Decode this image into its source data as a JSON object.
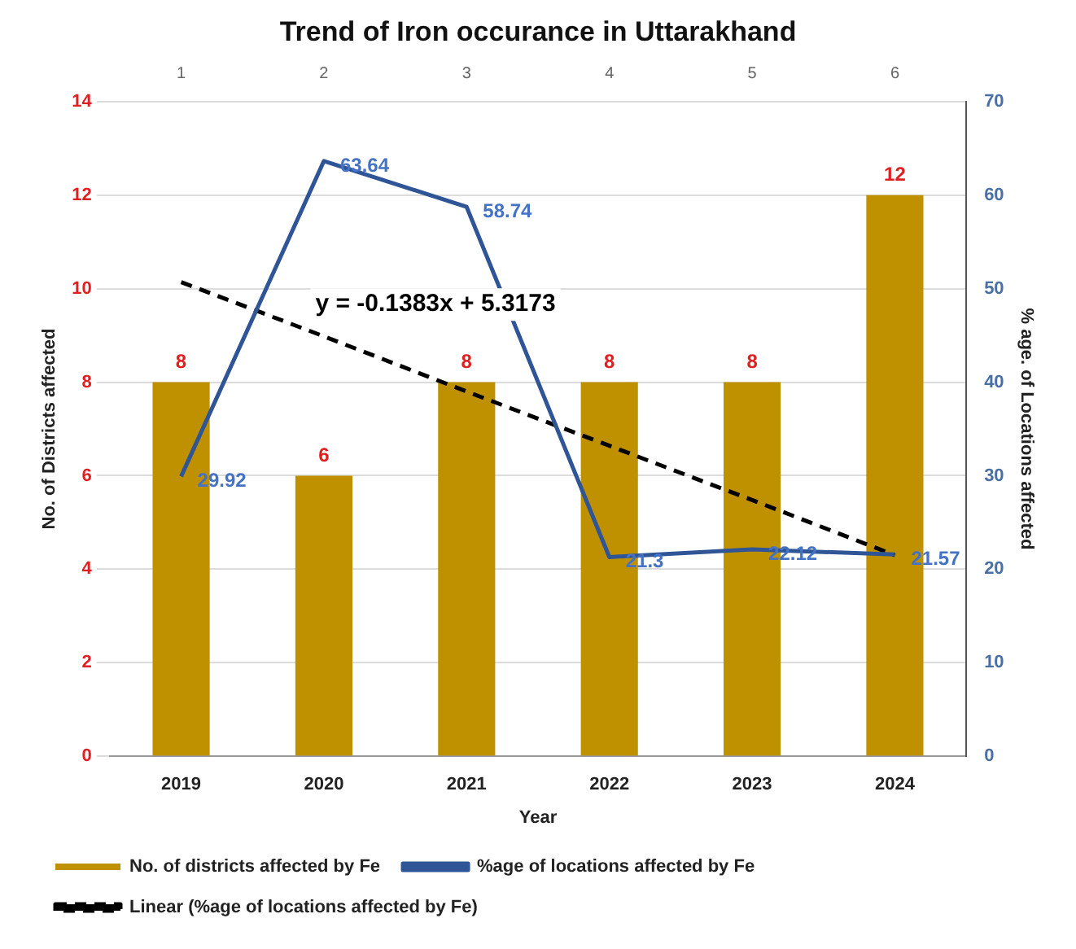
{
  "chart_data": {
    "type": "bar",
    "title": "Trend of Iron occurance in Uttarakhand",
    "xlabel": "Year",
    "ylabel": "No. of Districts affected",
    "y2label": "% age. of Locations affected",
    "categories": [
      "2019",
      "2020",
      "2021",
      "2022",
      "2023",
      "2024"
    ],
    "series": [
      {
        "name": "No. of districts affected by Fe",
        "color": "#bf9000",
        "values": [
          8,
          6,
          8,
          8,
          8,
          12
        ],
        "value_labels": [
          "8",
          "6",
          "8",
          "8",
          "8",
          "12"
        ]
      },
      {
        "name": "%age of locations affected by Fe",
        "type": "line",
        "axis": "y2",
        "color": "#2f5597",
        "values": [
          29.92,
          63.64,
          58.74,
          21.3,
          22.12,
          21.57
        ],
        "value_labels": [
          "29.92",
          "63.64",
          "58.74",
          "21.3",
          "22.12",
          "21.57"
        ]
      },
      {
        "name": "Linear (%age of locations affected by Fe)",
        "type": "line",
        "axis": "y2",
        "color": "#000000",
        "line_style": "dashed",
        "values": [
          50.7,
          44.9,
          39.0,
          33.2,
          27.4,
          21.5
        ]
      }
    ],
    "annotations": [
      "y = -0.1383x + 5.3173"
    ],
    "ylim": [
      0,
      14
    ],
    "yticks": [
      0,
      2,
      4,
      6,
      8,
      10,
      12,
      14
    ],
    "y2lim": [
      0,
      70
    ],
    "y2ticks": [
      0,
      10,
      20,
      30,
      40,
      50,
      60,
      70
    ],
    "x2lim": [
      0.5,
      6.5
    ],
    "x2ticks": [
      1,
      2,
      3,
      4,
      5,
      6
    ],
    "grid": "y",
    "legend": "bottom",
    "marker": "none"
  }
}
